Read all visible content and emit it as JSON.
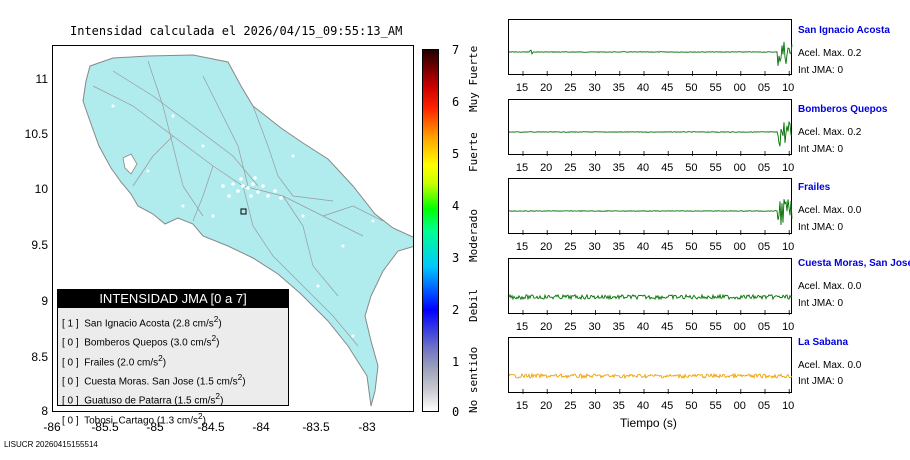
{
  "map": {
    "title": "Intensidad calculada el 2026/04/15_09:55:13_AM",
    "y_ticks": [
      "11",
      "10.5",
      "10",
      "9.5",
      "9",
      "8.5",
      "8"
    ],
    "x_ticks": [
      "-86",
      "-85.5",
      "-85",
      "-84.5",
      "-84",
      "-83.5",
      "-83"
    ]
  },
  "legend": {
    "title": "INTENSIDAD JMA [0 a 7]",
    "rows": [
      {
        "intensity": "[ 1 ]",
        "text": "San Ignacio Acosta (2.8 cm/s",
        "sup": "2",
        "close": ")"
      },
      {
        "intensity": "[ 0 ]",
        "text": "Bomberos Quepos (3.0 cm/s",
        "sup": "2",
        "close": ")"
      },
      {
        "intensity": "[ 0 ]",
        "text": "Frailes (2.0 cm/s",
        "sup": "2",
        "close": ")"
      },
      {
        "intensity": "[ 0 ]",
        "text": "Cuesta Moras. San Jose (1.5 cm/s",
        "sup": "2",
        "close": ")"
      },
      {
        "intensity": "[ 0 ]",
        "text": "Guatuso de Patarra (1.5 cm/s",
        "sup": "2",
        "close": ")"
      },
      {
        "intensity": "[ 0 ]",
        "text": "Tobosi. Cartago (1.3 cm/s",
        "sup": "2",
        "close": ")"
      }
    ]
  },
  "colorbar": {
    "numbers": [
      "7",
      "6",
      "5",
      "4",
      "3",
      "2",
      "1",
      "0"
    ],
    "words": [
      "Muy Fuerte",
      "Fuerte",
      "Moderado",
      "Debil",
      "No sentido"
    ]
  },
  "traces": {
    "x_ticks": [
      "15",
      "20",
      "25",
      "30",
      "35",
      "40",
      "45",
      "50",
      "55",
      "00",
      "05",
      "10"
    ],
    "x_label": "Tiempo (s)",
    "stations": [
      {
        "name": "San Ignacio Acosta",
        "acel": "Acel. Max. 0.2",
        "jma": "Int JMA: 0",
        "color": "#007000"
      },
      {
        "name": "Bomberos Quepos",
        "acel": "Acel. Max. 0.2",
        "jma": "Int JMA: 0",
        "color": "#007000"
      },
      {
        "name": "Frailes",
        "acel": "Acel. Max. 0.0",
        "jma": "Int JMA: 0",
        "color": "#007000"
      },
      {
        "name": "Cuesta Moras, San Jose",
        "acel": "Acel. Max. 0.0",
        "jma": "Int JMA: 0",
        "color": "#007000"
      },
      {
        "name": "La Sabana",
        "acel": "Acel. Max. 0.0",
        "jma": "Int JMA: 0",
        "color": "#f0a000"
      }
    ]
  },
  "footer": "LISUCR 20260415155514"
}
